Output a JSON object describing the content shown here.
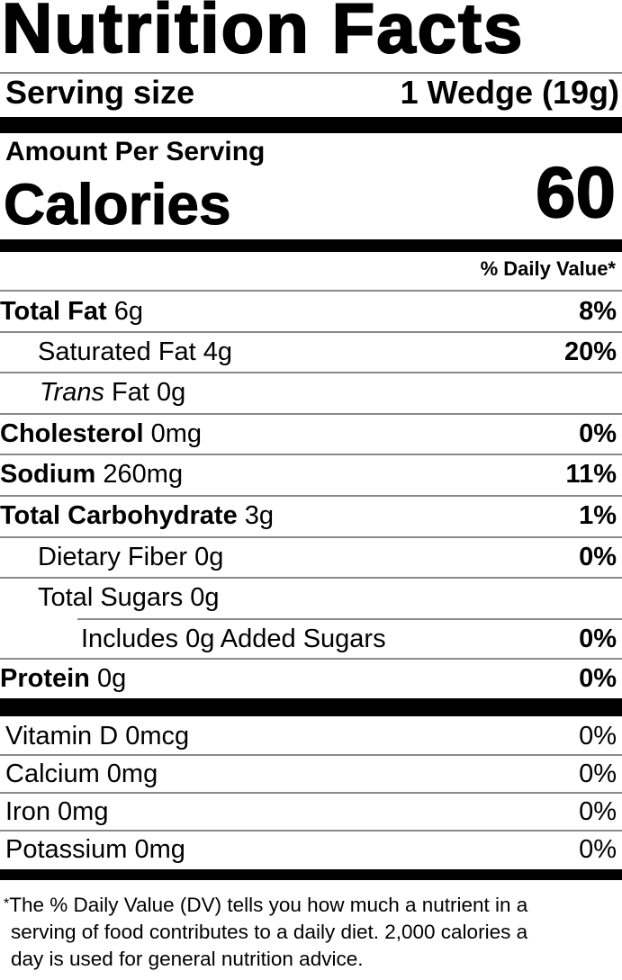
{
  "title": "Nutrition Facts",
  "serving": {
    "label": "Serving size",
    "value": "1 Wedge (19g)"
  },
  "amount_per_serving": "Amount Per Serving",
  "calories": {
    "label": "Calories",
    "value": "60"
  },
  "daily_value_header": "% Daily Value*",
  "nutrients": [
    {
      "name": "Total Fat",
      "amount": "6g",
      "dv": "8%"
    },
    {
      "name": "Saturated Fat",
      "amount": "4g",
      "dv": "20%"
    },
    {
      "name_italic": "Trans",
      "name": "Fat",
      "amount": "0g",
      "dv": ""
    },
    {
      "name": "Cholesterol",
      "amount": "0mg",
      "dv": "0%"
    },
    {
      "name": "Sodium",
      "amount": "260mg",
      "dv": "11%"
    },
    {
      "name": "Total Carbohydrate",
      "amount": "3g",
      "dv": "1%"
    },
    {
      "name": "Dietary Fiber",
      "amount": "0g",
      "dv": "0%"
    },
    {
      "name": "Total Sugars",
      "amount": "0g",
      "dv": ""
    },
    {
      "name": "Includes 0g Added Sugars",
      "amount": "",
      "dv": "0%"
    },
    {
      "name": "Protein",
      "amount": "0g",
      "dv": "0%"
    }
  ],
  "vitamins": [
    {
      "name": "Vitamin D 0mcg",
      "dv": "0%"
    },
    {
      "name": "Calcium 0mg",
      "dv": "0%"
    },
    {
      "name": "Iron 0mg",
      "dv": "0%"
    },
    {
      "name": "Potassium 0mg",
      "dv": "0%"
    }
  ],
  "footnote": {
    "star": "*",
    "lines": [
      "The % Daily Value (DV) tells you how much a nutrient in a",
      "serving of food contributes to a daily diet. 2,000 calories a",
      "day is used for general nutrition advice."
    ]
  }
}
